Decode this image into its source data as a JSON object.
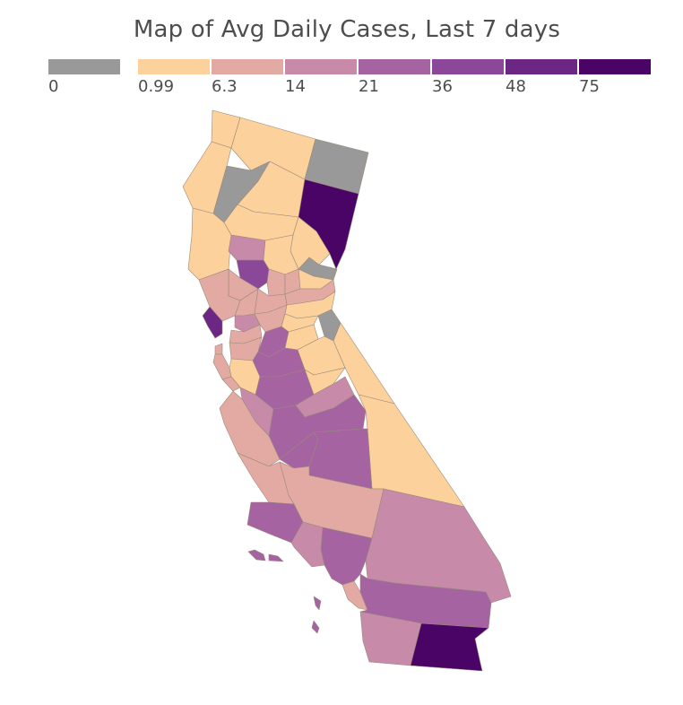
{
  "title": "Map of Avg Daily Cases, Last 7 days",
  "legend": {
    "bins": [
      {
        "label": "0",
        "color": "#999999"
      },
      {
        "label": "0.99",
        "color": "#fdd19b"
      },
      {
        "label": "6.3",
        "color": "#e3aaa3"
      },
      {
        "label": "14",
        "color": "#c78aa8"
      },
      {
        "label": "21",
        "color": "#a563a1"
      },
      {
        "label": "36",
        "color": "#8b4798"
      },
      {
        "label": "48",
        "color": "#6c2784"
      },
      {
        "label": "75",
        "color": "#4a0466"
      }
    ]
  },
  "regions": [
    {
      "name": "del-norte",
      "bin": 1
    },
    {
      "name": "siskiyou",
      "bin": 1
    },
    {
      "name": "modoc",
      "bin": 0
    },
    {
      "name": "humboldt",
      "bin": 1
    },
    {
      "name": "trinity",
      "bin": 0
    },
    {
      "name": "shasta",
      "bin": 1
    },
    {
      "name": "lassen",
      "bin": 7
    },
    {
      "name": "mendocino",
      "bin": 1
    },
    {
      "name": "tehama",
      "bin": 1
    },
    {
      "name": "plumas",
      "bin": 1
    },
    {
      "name": "glenn",
      "bin": 3
    },
    {
      "name": "butte",
      "bin": 1
    },
    {
      "name": "sierra",
      "bin": 0
    },
    {
      "name": "colusa",
      "bin": 5
    },
    {
      "name": "lake",
      "bin": 2
    },
    {
      "name": "sutter",
      "bin": 2
    },
    {
      "name": "yuba",
      "bin": 2
    },
    {
      "name": "nevada",
      "bin": 1
    },
    {
      "name": "placer",
      "bin": 2
    },
    {
      "name": "sonoma",
      "bin": 2
    },
    {
      "name": "napa",
      "bin": 2
    },
    {
      "name": "yolo",
      "bin": 2
    },
    {
      "name": "el-dorado",
      "bin": 1
    },
    {
      "name": "marin",
      "bin": 6
    },
    {
      "name": "solano",
      "bin": 3
    },
    {
      "name": "sacramento",
      "bin": 2
    },
    {
      "name": "amador",
      "bin": 1
    },
    {
      "name": "alpine",
      "bin": 0
    },
    {
      "name": "contra-costa",
      "bin": 2
    },
    {
      "name": "san-joaquin",
      "bin": 4
    },
    {
      "name": "calaveras",
      "bin": 1
    },
    {
      "name": "tuolumne",
      "bin": 1
    },
    {
      "name": "mono",
      "bin": 1
    },
    {
      "name": "san-francisco",
      "bin": 2
    },
    {
      "name": "alameda",
      "bin": 2
    },
    {
      "name": "san-mateo",
      "bin": 2
    },
    {
      "name": "santa-clara",
      "bin": 1
    },
    {
      "name": "stanislaus",
      "bin": 4
    },
    {
      "name": "mariposa",
      "bin": 1
    },
    {
      "name": "merced",
      "bin": 4
    },
    {
      "name": "madera",
      "bin": 3
    },
    {
      "name": "santa-cruz",
      "bin": 2
    },
    {
      "name": "san-benito",
      "bin": 3
    },
    {
      "name": "fresno",
      "bin": 4
    },
    {
      "name": "inyo",
      "bin": 1
    },
    {
      "name": "monterey",
      "bin": 2
    },
    {
      "name": "kings",
      "bin": 4
    },
    {
      "name": "tulare",
      "bin": 4
    },
    {
      "name": "san-luis-obispo",
      "bin": 2
    },
    {
      "name": "kern",
      "bin": 2
    },
    {
      "name": "san-bernardino",
      "bin": 3
    },
    {
      "name": "santa-barbara",
      "bin": 4
    },
    {
      "name": "ventura",
      "bin": 3
    },
    {
      "name": "los-angeles",
      "bin": 4
    },
    {
      "name": "orange",
      "bin": 2
    },
    {
      "name": "riverside",
      "bin": 4
    },
    {
      "name": "san-diego",
      "bin": 3
    },
    {
      "name": "imperial",
      "bin": 7
    },
    {
      "name": "channel-islands",
      "bin": 4
    },
    {
      "name": "catalina-islands",
      "bin": 4
    }
  ]
}
